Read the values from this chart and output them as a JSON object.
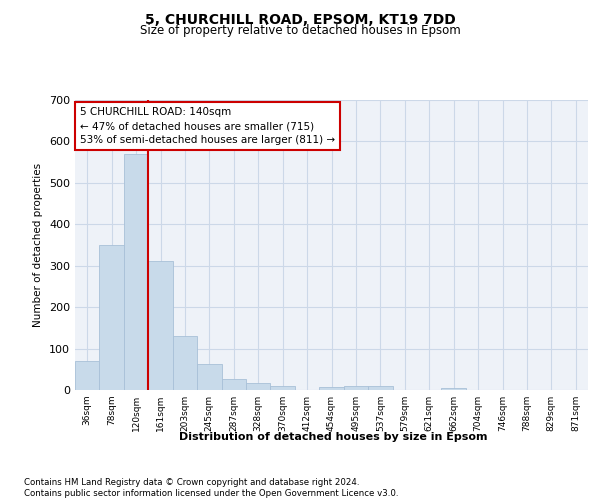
{
  "title_line1": "5, CHURCHILL ROAD, EPSOM, KT19 7DD",
  "title_line2": "Size of property relative to detached houses in Epsom",
  "xlabel": "Distribution of detached houses by size in Epsom",
  "ylabel": "Number of detached properties",
  "bin_labels": [
    "36sqm",
    "78sqm",
    "120sqm",
    "161sqm",
    "203sqm",
    "245sqm",
    "287sqm",
    "328sqm",
    "370sqm",
    "412sqm",
    "454sqm",
    "495sqm",
    "537sqm",
    "579sqm",
    "621sqm",
    "662sqm",
    "704sqm",
    "746sqm",
    "788sqm",
    "829sqm",
    "871sqm"
  ],
  "bar_values": [
    70,
    350,
    570,
    312,
    130,
    63,
    27,
    17,
    10,
    0,
    8,
    10,
    10,
    0,
    0,
    5,
    0,
    0,
    0,
    0,
    0
  ],
  "bar_color": "#c8daea",
  "bar_edgecolor": "#a8c0d8",
  "property_line_x": 2.5,
  "annotation_text": "5 CHURCHILL ROAD: 140sqm\n← 47% of detached houses are smaller (715)\n53% of semi-detached houses are larger (811) →",
  "annotation_box_color": "#ffffff",
  "annotation_border_color": "#cc0000",
  "vline_color": "#cc0000",
  "grid_color": "#ccd8e8",
  "background_color": "#eef2f8",
  "footer_text": "Contains HM Land Registry data © Crown copyright and database right 2024.\nContains public sector information licensed under the Open Government Licence v3.0.",
  "ylim": [
    0,
    700
  ],
  "yticks": [
    0,
    100,
    200,
    300,
    400,
    500,
    600,
    700
  ]
}
